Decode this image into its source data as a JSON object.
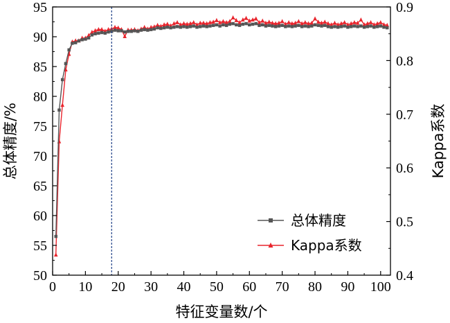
{
  "chart_data": {
    "type": "line",
    "xlabel": "特征变量数/个",
    "ylabel": "总体精度/%",
    "y2label": "Kappa系数",
    "xlim": [
      0,
      103
    ],
    "ylim": [
      50,
      95
    ],
    "y2lim": [
      0.4,
      0.9
    ],
    "x_ticks": [
      "0",
      "10",
      "20",
      "30",
      "40",
      "50",
      "60",
      "70",
      "80",
      "90",
      "100"
    ],
    "y_ticks": [
      "50",
      "55",
      "60",
      "65",
      "70",
      "75",
      "80",
      "85",
      "90",
      "95"
    ],
    "y2_ticks": [
      "0.4",
      "0.5",
      "0.6",
      "0.7",
      "0.8",
      "0.9"
    ],
    "vline_x": 18,
    "grid": false,
    "legend_position": "bottom-right",
    "colors": {
      "overall": "#555555",
      "kappa": "#e8242c",
      "vline": "#2e4d8f"
    },
    "series": [
      {
        "name": "总体精度",
        "axis": "left",
        "marker": "square",
        "x": [
          1,
          2,
          3,
          4,
          5,
          6,
          7,
          8,
          9,
          10,
          11,
          12,
          13,
          14,
          15,
          16,
          17,
          18,
          19,
          20,
          21,
          22,
          23,
          24,
          25,
          26,
          27,
          28,
          29,
          30,
          31,
          32,
          33,
          34,
          35,
          36,
          37,
          38,
          39,
          40,
          41,
          42,
          43,
          44,
          45,
          46,
          47,
          48,
          49,
          50,
          51,
          52,
          53,
          54,
          55,
          56,
          57,
          58,
          59,
          60,
          61,
          62,
          63,
          64,
          65,
          66,
          67,
          68,
          69,
          70,
          71,
          72,
          73,
          74,
          75,
          76,
          77,
          78,
          79,
          80,
          81,
          82,
          83,
          84,
          85,
          86,
          87,
          88,
          89,
          90,
          91,
          92,
          93,
          94,
          95,
          96,
          97,
          98,
          99,
          100,
          101,
          102
        ],
        "values": [
          56.5,
          77.7,
          82.8,
          85.5,
          87.8,
          88.9,
          89.0,
          89.3,
          89.5,
          89.6,
          89.8,
          90.3,
          90.5,
          90.6,
          90.7,
          90.6,
          90.8,
          90.9,
          91.1,
          91.0,
          91.0,
          90.8,
          90.9,
          90.9,
          91.0,
          90.9,
          91.1,
          91.2,
          91.1,
          91.2,
          91.3,
          91.5,
          91.4,
          91.5,
          91.6,
          91.5,
          91.6,
          91.7,
          91.6,
          91.7,
          91.6,
          91.7,
          91.8,
          91.6,
          91.7,
          91.8,
          91.7,
          91.8,
          91.9,
          92.0,
          91.8,
          92.0,
          91.9,
          92.1,
          92.2,
          92.0,
          91.9,
          92.1,
          92.2,
          92.0,
          92.1,
          92.2,
          91.9,
          92.0,
          91.8,
          91.9,
          91.8,
          91.7,
          91.8,
          91.9,
          91.7,
          91.8,
          91.7,
          91.8,
          91.9,
          91.7,
          91.8,
          91.7,
          91.8,
          92.0,
          91.9,
          91.8,
          91.9,
          91.7,
          91.6,
          91.7,
          91.6,
          91.7,
          91.8,
          91.6,
          91.7,
          91.8,
          91.7,
          91.8,
          91.6,
          91.7,
          91.8,
          91.6,
          91.7,
          91.8,
          91.6,
          91.5
        ]
      },
      {
        "name": "Kappa系数",
        "axis": "right",
        "marker": "triangle",
        "x": [
          1,
          2,
          3,
          4,
          5,
          6,
          7,
          8,
          9,
          10,
          11,
          12,
          13,
          14,
          15,
          16,
          17,
          18,
          19,
          20,
          21,
          22,
          23,
          24,
          25,
          26,
          27,
          28,
          29,
          30,
          31,
          32,
          33,
          34,
          35,
          36,
          37,
          38,
          39,
          40,
          41,
          42,
          43,
          44,
          45,
          46,
          47,
          48,
          49,
          50,
          51,
          52,
          53,
          54,
          55,
          56,
          57,
          58,
          59,
          60,
          61,
          62,
          63,
          64,
          65,
          66,
          67,
          68,
          69,
          70,
          71,
          72,
          73,
          74,
          75,
          76,
          77,
          78,
          79,
          80,
          81,
          82,
          83,
          84,
          85,
          86,
          87,
          88,
          89,
          90,
          91,
          92,
          93,
          94,
          95,
          96,
          97,
          98,
          99,
          100,
          101,
          102
        ],
        "values": [
          0.438,
          0.649,
          0.717,
          0.783,
          0.812,
          0.835,
          0.837,
          0.837,
          0.842,
          0.842,
          0.847,
          0.853,
          0.856,
          0.858,
          0.858,
          0.855,
          0.858,
          0.859,
          0.862,
          0.861,
          0.858,
          0.845,
          0.857,
          0.857,
          0.858,
          0.856,
          0.859,
          0.862,
          0.859,
          0.862,
          0.863,
          0.866,
          0.864,
          0.867,
          0.868,
          0.865,
          0.869,
          0.871,
          0.867,
          0.869,
          0.868,
          0.869,
          0.871,
          0.867,
          0.87,
          0.87,
          0.869,
          0.871,
          0.872,
          0.875,
          0.871,
          0.873,
          0.871,
          0.873,
          0.88,
          0.875,
          0.871,
          0.876,
          0.879,
          0.874,
          0.876,
          0.878,
          0.871,
          0.874,
          0.87,
          0.872,
          0.87,
          0.869,
          0.87,
          0.873,
          0.868,
          0.871,
          0.869,
          0.87,
          0.873,
          0.869,
          0.871,
          0.869,
          0.87,
          0.878,
          0.872,
          0.87,
          0.872,
          0.869,
          0.867,
          0.87,
          0.867,
          0.869,
          0.871,
          0.867,
          0.869,
          0.871,
          0.87,
          0.876,
          0.867,
          0.869,
          0.871,
          0.867,
          0.869,
          0.871,
          0.867,
          0.866
        ]
      }
    ]
  }
}
